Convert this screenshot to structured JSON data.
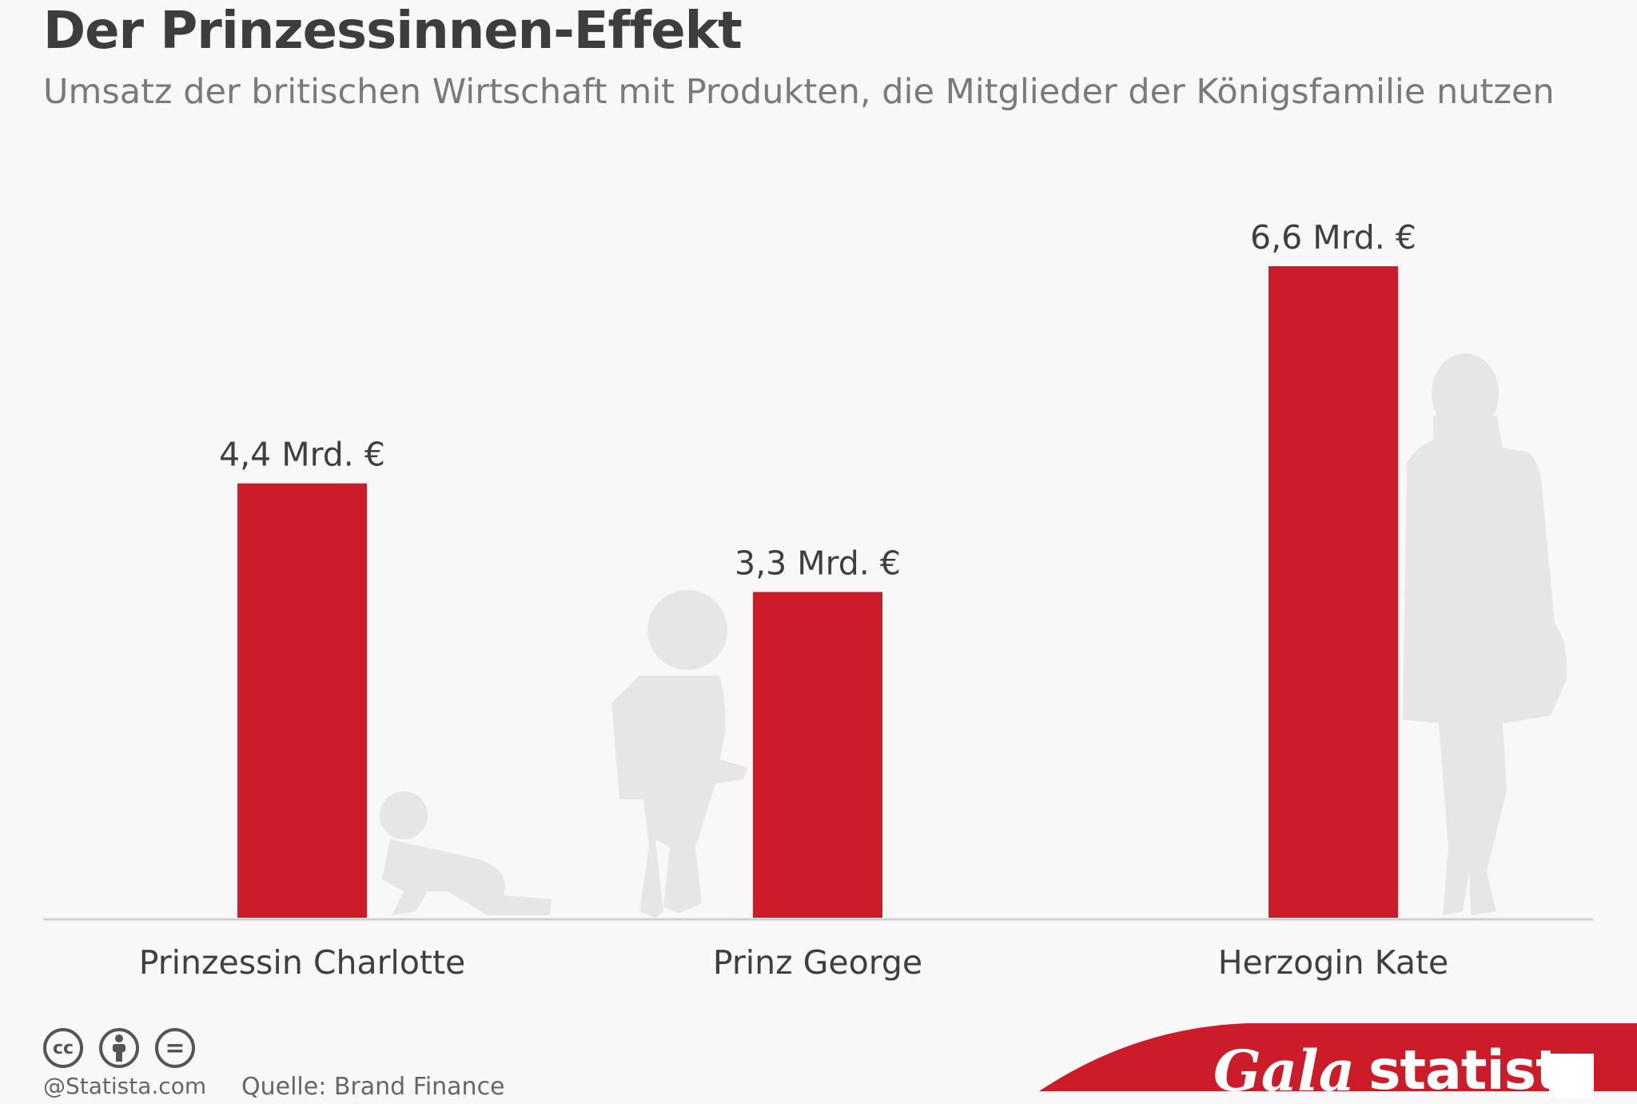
{
  "chart_data": {
    "type": "bar",
    "title": "Der Prinzessinnen-Effekt",
    "subtitle": "Umsatz der britischen Wirtschaft mit Produkten, die Mitglieder der Königsfamilie nutzen",
    "categories": [
      "Prinzessin Charlotte",
      "Prinz George",
      "Herzogin Kate"
    ],
    "values": [
      4.4,
      3.3,
      6.6
    ],
    "value_labels": [
      "4,4 Mrd. €",
      "3,3 Mrd. €",
      "6,6 Mrd. €"
    ],
    "unit": "Mrd. €",
    "ylim": [
      0,
      6.6
    ],
    "grid": false,
    "bar_color": "#cc1c2a"
  },
  "footer": {
    "credit": "@Statista.com",
    "source": "Quelle: Brand Finance",
    "license_icons": [
      "cc-icon",
      "attribution-icon",
      "no-derivatives-icon"
    ],
    "license_glyphs": [
      "cc",
      "="
    ],
    "brand_gala": "Gala",
    "brand_statista": "statista",
    "ribbon_color": "#cc1c2a"
  }
}
